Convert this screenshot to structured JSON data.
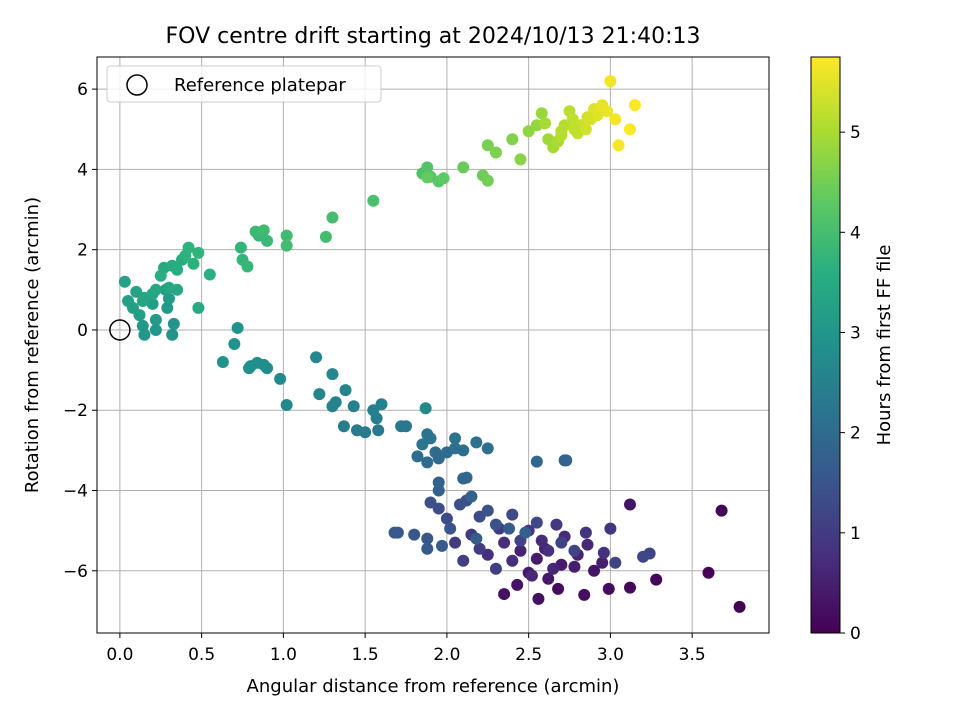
{
  "chart_data": {
    "type": "scatter",
    "title": "FOV centre drift starting at 2024/10/13 21:40:13",
    "xlabel": "Angular distance from reference (arcmin)",
    "ylabel": "Rotation from reference (arcmin)",
    "xlim": [
      -0.14,
      3.97
    ],
    "ylim": [
      -7.55,
      6.8
    ],
    "xticks": [
      0.0,
      0.5,
      1.0,
      1.5,
      2.0,
      2.5,
      3.0,
      3.5
    ],
    "xtick_labels": [
      "0.0",
      "0.5",
      "1.0",
      "1.5",
      "2.0",
      "2.5",
      "3.0",
      "3.5"
    ],
    "yticks": [
      -6,
      -4,
      -2,
      0,
      2,
      4,
      6
    ],
    "ytick_labels": [
      "−6",
      "−4",
      "−2",
      "0",
      "2",
      "4",
      "6"
    ],
    "grid": true,
    "legend": {
      "placement": "top-left",
      "label": "Reference platepar",
      "marker": "open-circle"
    },
    "reference_point": {
      "x": 0.0,
      "y": 0.0
    },
    "colorbar": {
      "label": "Hours from first FF file",
      "colormap": "viridis",
      "range": [
        0,
        5.75
      ],
      "ticks": [
        0,
        1,
        2,
        3,
        4,
        5
      ],
      "tick_labels": [
        "0",
        "1",
        "2",
        "3",
        "4",
        "5"
      ]
    },
    "points": [
      [
        3.79,
        -6.9,
        0.02
      ],
      [
        3.6,
        -6.05,
        0.05
      ],
      [
        3.68,
        -4.5,
        0.07
      ],
      [
        3.28,
        -6.22,
        0.1
      ],
      [
        3.12,
        -6.42,
        0.13
      ],
      [
        2.99,
        -6.45,
        0.16
      ],
      [
        2.68,
        -6.45,
        0.18
      ],
      [
        2.84,
        -6.6,
        0.21
      ],
      [
        2.56,
        -6.7,
        0.25
      ],
      [
        2.35,
        -6.58,
        0.28
      ],
      [
        2.43,
        -6.35,
        0.3
      ],
      [
        3.12,
        -4.35,
        0.32
      ],
      [
        2.9,
        -6.0,
        0.35
      ],
      [
        2.62,
        -6.2,
        0.38
      ],
      [
        2.5,
        -6.05,
        0.4
      ],
      [
        2.7,
        -5.85,
        0.43
      ],
      [
        2.55,
        -5.7,
        0.45
      ],
      [
        2.78,
        -5.9,
        0.47
      ],
      [
        2.95,
        -5.8,
        0.5
      ],
      [
        2.6,
        -5.45,
        0.52
      ],
      [
        2.45,
        -5.5,
        0.55
      ],
      [
        2.8,
        -5.6,
        0.57
      ],
      [
        2.65,
        -5.95,
        0.6
      ],
      [
        2.52,
        -6.12,
        0.62
      ],
      [
        2.86,
        -5.35,
        0.65
      ],
      [
        2.72,
        -5.15,
        0.67
      ],
      [
        2.58,
        -5.25,
        0.7
      ],
      [
        2.35,
        -5.3,
        0.72
      ],
      [
        2.25,
        -5.6,
        0.75
      ],
      [
        2.4,
        -5.75,
        0.77
      ],
      [
        2.62,
        -5.5,
        0.8
      ],
      [
        2.96,
        -5.55,
        0.82
      ],
      [
        3.0,
        -4.95,
        0.85
      ],
      [
        2.85,
        -5.05,
        0.87
      ],
      [
        2.67,
        -4.85,
        0.9
      ],
      [
        2.5,
        -5.0,
        0.92
      ],
      [
        2.32,
        -4.95,
        0.95
      ],
      [
        2.15,
        -5.1,
        0.97
      ],
      [
        2.05,
        -5.3,
        1.0
      ],
      [
        2.2,
        -5.45,
        1.02
      ],
      [
        2.1,
        -5.75,
        1.05
      ],
      [
        2.3,
        -5.95,
        1.07
      ],
      [
        2.45,
        -5.25,
        1.1
      ],
      [
        2.7,
        -5.3,
        1.12
      ],
      [
        2.78,
        -5.5,
        1.15
      ],
      [
        3.03,
        -5.8,
        1.17
      ],
      [
        3.24,
        -5.57,
        1.2
      ],
      [
        3.2,
        -5.65,
        1.22
      ],
      [
        2.55,
        -4.8,
        1.25
      ],
      [
        2.4,
        -4.6,
        1.27
      ],
      [
        2.2,
        -4.65,
        1.3
      ],
      [
        2.0,
        -4.7,
        1.32
      ],
      [
        1.95,
        -4.45,
        1.35
      ],
      [
        2.08,
        -4.35,
        1.37
      ],
      [
        1.9,
        -4.3,
        1.4
      ],
      [
        2.12,
        -4.25,
        1.42
      ],
      [
        2.25,
        -4.5,
        1.45
      ],
      [
        2.3,
        -4.85,
        1.47
      ],
      [
        2.02,
        -4.95,
        1.5
      ],
      [
        1.88,
        -5.2,
        1.52
      ],
      [
        1.8,
        -5.1,
        1.55
      ],
      [
        1.7,
        -5.05,
        1.57
      ],
      [
        1.68,
        -5.05,
        1.6
      ],
      [
        1.88,
        -5.45,
        1.62
      ],
      [
        1.97,
        -5.38,
        1.65
      ],
      [
        2.18,
        -5.2,
        1.67
      ],
      [
        2.38,
        -4.95,
        1.7
      ],
      [
        2.48,
        -5.05,
        1.72
      ],
      [
        1.95,
        -4.0,
        1.75
      ],
      [
        1.95,
        -3.8,
        1.77
      ],
      [
        2.15,
        -4.15,
        1.8
      ],
      [
        2.72,
        -3.25,
        1.82
      ],
      [
        2.73,
        -3.25,
        1.85
      ],
      [
        2.1,
        -3.7,
        1.87
      ],
      [
        2.12,
        -3.68,
        1.9
      ],
      [
        2.55,
        -3.28,
        1.92
      ],
      [
        1.95,
        -3.2,
        1.95
      ],
      [
        1.93,
        -3.05,
        1.97
      ],
      [
        2.0,
        -3.05,
        2.0
      ],
      [
        1.88,
        -3.3,
        2.02
      ],
      [
        1.82,
        -3.15,
        2.05
      ],
      [
        2.05,
        -2.95,
        2.07
      ],
      [
        2.1,
        -3.0,
        2.1
      ],
      [
        2.25,
        -2.95,
        2.12
      ],
      [
        2.18,
        -2.8,
        2.15
      ],
      [
        2.05,
        -2.7,
        2.17
      ],
      [
        1.88,
        -2.6,
        2.2
      ],
      [
        1.9,
        -2.7,
        2.22
      ],
      [
        1.85,
        -2.85,
        2.25
      ],
      [
        1.75,
        -2.4,
        2.27
      ],
      [
        1.72,
        -2.4,
        2.3
      ],
      [
        1.58,
        -2.5,
        2.32
      ],
      [
        1.5,
        -2.55,
        2.35
      ],
      [
        1.45,
        -2.5,
        2.37
      ],
      [
        1.37,
        -2.4,
        2.4
      ],
      [
        1.57,
        -2.2,
        2.42
      ],
      [
        1.55,
        -2.0,
        2.45
      ],
      [
        1.6,
        -1.85,
        2.47
      ],
      [
        1.43,
        -1.9,
        2.5
      ],
      [
        1.32,
        -1.8,
        2.52
      ],
      [
        1.3,
        -1.9,
        2.55
      ],
      [
        1.38,
        -1.5,
        2.57
      ],
      [
        1.22,
        -1.6,
        2.6
      ],
      [
        1.3,
        -1.1,
        2.62
      ],
      [
        1.2,
        -0.68,
        2.65
      ],
      [
        1.87,
        -1.95,
        2.67
      ],
      [
        1.02,
        -1.87,
        2.7
      ],
      [
        0.98,
        -1.22,
        2.72
      ],
      [
        0.9,
        -0.95,
        2.75
      ],
      [
        0.88,
        -0.87,
        2.77
      ],
      [
        0.8,
        -0.9,
        2.8
      ],
      [
        0.84,
        -0.82,
        2.82
      ],
      [
        0.79,
        -0.95,
        2.85
      ],
      [
        0.63,
        -0.8,
        2.87
      ],
      [
        0.7,
        -0.35,
        2.9
      ],
      [
        0.72,
        0.05,
        2.92
      ],
      [
        0.33,
        0.15,
        2.95
      ],
      [
        0.32,
        -0.12,
        2.97
      ],
      [
        0.22,
        0.0,
        3.0
      ],
      [
        0.15,
        -0.12,
        3.02
      ],
      [
        0.14,
        0.1,
        3.05
      ],
      [
        0.22,
        0.25,
        3.07
      ],
      [
        0.29,
        0.55,
        3.1
      ],
      [
        0.3,
        0.78,
        3.12
      ],
      [
        0.28,
        1.0,
        3.15
      ],
      [
        0.2,
        0.65,
        3.17
      ],
      [
        0.12,
        0.37,
        3.2
      ],
      [
        0.08,
        0.55,
        3.22
      ],
      [
        0.05,
        0.72,
        3.25
      ],
      [
        0.03,
        1.2,
        3.27
      ],
      [
        0.1,
        0.95,
        3.3
      ],
      [
        0.15,
        0.8,
        3.32
      ],
      [
        0.2,
        0.9,
        3.35
      ],
      [
        0.14,
        0.72,
        3.37
      ],
      [
        0.22,
        1.0,
        3.4
      ],
      [
        0.3,
        1.05,
        3.42
      ],
      [
        0.35,
        1.0,
        3.45
      ],
      [
        0.48,
        0.55,
        3.47
      ],
      [
        0.27,
        1.55,
        3.5
      ],
      [
        0.32,
        1.6,
        3.52
      ],
      [
        0.35,
        1.5,
        3.55
      ],
      [
        0.38,
        1.75,
        3.57
      ],
      [
        0.25,
        1.35,
        3.6
      ],
      [
        0.55,
        1.38,
        3.62
      ],
      [
        0.45,
        1.65,
        3.65
      ],
      [
        0.4,
        1.85,
        3.67
      ],
      [
        0.42,
        2.05,
        3.7
      ],
      [
        0.48,
        1.92,
        3.72
      ],
      [
        0.74,
        2.05,
        3.75
      ],
      [
        0.75,
        1.75,
        3.77
      ],
      [
        0.78,
        1.58,
        3.8
      ],
      [
        0.85,
        2.35,
        3.82
      ],
      [
        0.9,
        2.22,
        3.85
      ],
      [
        0.83,
        2.45,
        3.87
      ],
      [
        0.88,
        2.48,
        3.9
      ],
      [
        1.02,
        2.35,
        3.92
      ],
      [
        1.02,
        2.1,
        3.95
      ],
      [
        1.26,
        2.32,
        3.97
      ],
      [
        1.3,
        2.8,
        4.0
      ],
      [
        1.55,
        3.22,
        4.05
      ],
      [
        1.85,
        3.9,
        4.1
      ],
      [
        1.88,
        4.05,
        4.15
      ],
      [
        1.9,
        3.82,
        4.2
      ],
      [
        1.95,
        3.7,
        4.25
      ],
      [
        1.98,
        3.78,
        4.3
      ],
      [
        1.88,
        3.8,
        4.35
      ],
      [
        2.1,
        4.05,
        4.4
      ],
      [
        2.22,
        3.85,
        4.45
      ],
      [
        2.25,
        3.72,
        4.5
      ],
      [
        2.25,
        4.6,
        4.55
      ],
      [
        2.3,
        4.42,
        4.6
      ],
      [
        2.4,
        4.75,
        4.65
      ],
      [
        2.45,
        4.25,
        4.7
      ],
      [
        2.5,
        4.95,
        4.75
      ],
      [
        2.55,
        5.1,
        4.8
      ],
      [
        2.58,
        5.4,
        4.85
      ],
      [
        2.62,
        4.75,
        4.9
      ],
      [
        2.65,
        4.55,
        4.95
      ],
      [
        2.68,
        4.7,
        5.0
      ],
      [
        2.7,
        4.95,
        5.05
      ],
      [
        2.72,
        5.1,
        5.1
      ],
      [
        2.75,
        5.45,
        5.15
      ],
      [
        2.77,
        5.25,
        5.2
      ],
      [
        2.8,
        4.9,
        5.25
      ],
      [
        2.82,
        5.1,
        5.3
      ],
      [
        2.85,
        5.0,
        5.35
      ],
      [
        2.88,
        5.25,
        5.4
      ],
      [
        2.9,
        5.5,
        5.45
      ],
      [
        2.92,
        5.35,
        5.5
      ],
      [
        2.95,
        5.6,
        5.55
      ],
      [
        2.98,
        5.45,
        5.6
      ],
      [
        3.0,
        6.2,
        5.65
      ],
      [
        3.03,
        5.25,
        5.67
      ],
      [
        3.05,
        4.6,
        5.7
      ],
      [
        3.12,
        5.0,
        5.72
      ],
      [
        3.15,
        5.6,
        5.74
      ],
      [
        2.78,
        5.0,
        5.2
      ],
      [
        2.7,
        4.85,
        5.12
      ],
      [
        2.86,
        5.3,
        5.37
      ],
      [
        2.6,
        5.15,
        4.98
      ]
    ]
  }
}
